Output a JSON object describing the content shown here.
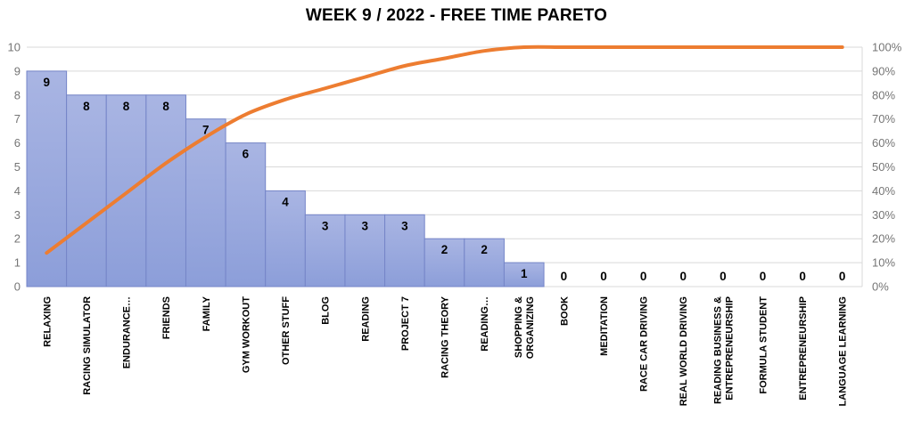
{
  "chart_data": {
    "type": "bar",
    "subtype": "pareto-with-cumulative-line",
    "title": "WEEK 9 / 2022 - FREE TIME PARETO",
    "categories": [
      "RELAXING",
      "RACING SIMULATOR",
      "ENDURANCE…",
      "FRIENDS",
      "FAMILY",
      "GYM WORKOUT",
      "OTHER STUFF",
      "BLOG",
      "READING",
      "PROJECT 7",
      "RACING THEORY",
      "READING…",
      "SHOPPING &\nORGANIZING",
      "BOOK",
      "MEDITATION",
      "RACE CAR DRIVING",
      "REAL WORLD DRIVING",
      "READING BUSINESS &\nENTREPRENEURSHIP",
      "FORMULA STUDENT",
      "ENTREPRENEURSHIP",
      "LANGUAGE LEARNING"
    ],
    "series": [
      {
        "name": "hours",
        "type": "bar",
        "values": [
          9,
          8,
          8,
          8,
          7,
          6,
          4,
          3,
          3,
          3,
          2,
          2,
          1,
          0,
          0,
          0,
          0,
          0,
          0,
          0,
          0
        ]
      },
      {
        "name": "cumulative-percent",
        "type": "line",
        "values": [
          14.06,
          26.56,
          39.06,
          51.56,
          62.5,
          71.88,
          78.13,
          82.81,
          87.5,
          92.19,
          95.31,
          98.44,
          100,
          100,
          100,
          100,
          100,
          100,
          100,
          100,
          100
        ]
      }
    ],
    "data_labels": [
      "9",
      "8",
      "8",
      "8",
      "7",
      "6",
      "4",
      "3",
      "3",
      "3",
      "2",
      "2",
      "1",
      "0",
      "0",
      "0",
      "0",
      "0",
      "0",
      "0",
      "0"
    ],
    "left_axis": {
      "min": 0,
      "max": 10,
      "step": 1,
      "ticks": [
        "0",
        "1",
        "2",
        "3",
        "4",
        "5",
        "6",
        "7",
        "8",
        "9",
        "10"
      ]
    },
    "right_axis": {
      "min": 0,
      "max": 100,
      "step": 10,
      "ticks": [
        "0%",
        "10%",
        "20%",
        "30%",
        "40%",
        "50%",
        "60%",
        "70%",
        "80%",
        "90%",
        "100%"
      ]
    },
    "grid": "horizontal-on",
    "legend": "none",
    "colors": {
      "bar_fill_top": "#A9B5E3",
      "bar_fill_bottom": "#8C9ED9",
      "bar_border": "#7585C8",
      "line": "#ED7D31",
      "gridline": "#D9D9D9",
      "axis_text": "#757575",
      "value_label": "#000000",
      "title_text": "#000000",
      "background": "#FFFFFF"
    }
  }
}
